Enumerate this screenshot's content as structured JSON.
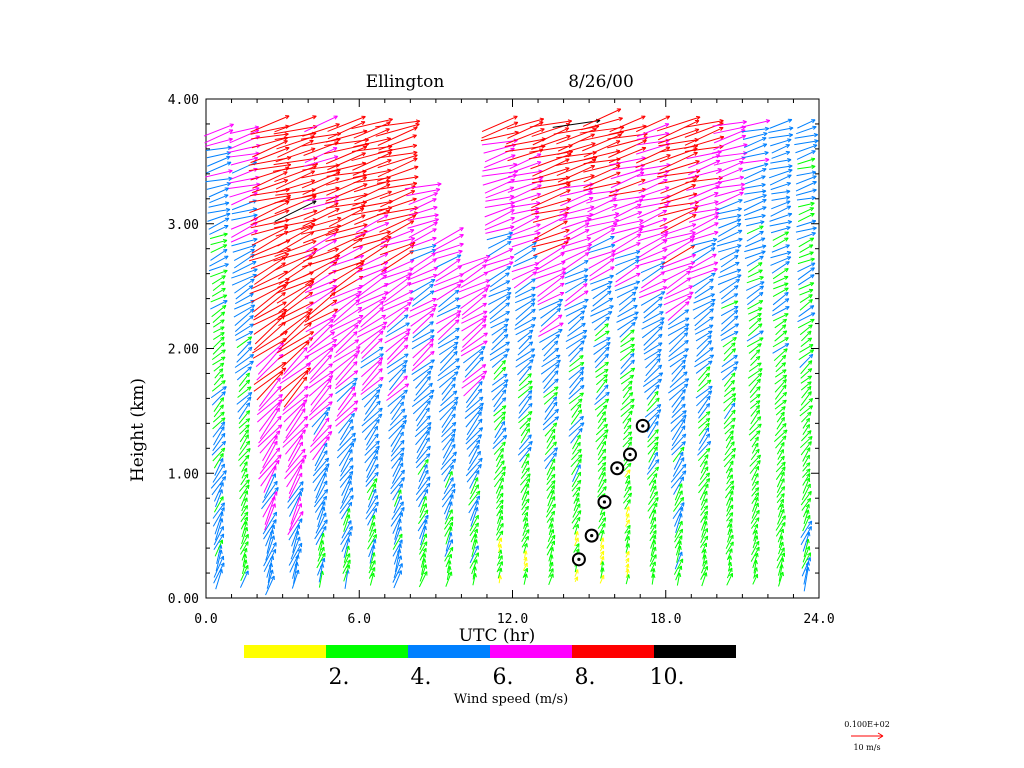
{
  "chart_data": {
    "type": "wind-profile",
    "title_station": "Ellington",
    "title_date": "8/26/00",
    "xlabel": "UTC (hr)",
    "ylabel": "Height (km)",
    "xlim": [
      0,
      24
    ],
    "ylim": [
      0,
      4
    ],
    "xticks": [
      0,
      12,
      24
    ],
    "xtick_labels": [
      "0.0",
      "12.0",
      "24.0"
    ],
    "xtick_labels_extra": [
      "6.0",
      "18.0"
    ],
    "yticks": [
      0,
      1,
      2,
      3,
      4
    ],
    "ytick_labels": [
      "0.00",
      "1.00",
      "2.00",
      "3.00",
      "4.00"
    ],
    "profile_times": [
      0.5,
      1.5,
      2.5,
      3.5,
      4.5,
      5.5,
      6.5,
      7.5,
      8.5,
      9.5,
      10.5,
      11.5,
      12.5,
      13.5,
      14.5,
      15.5,
      16.5,
      17.5,
      18.5,
      19.5,
      20.5,
      21.5,
      22.5,
      23.5
    ],
    "height_step_km": 0.05,
    "profile_tops_km": [
      3.75,
      3.75,
      3.8,
      3.8,
      3.8,
      3.8,
      3.8,
      3.8,
      3.3,
      2.9,
      2.7,
      3.8,
      3.8,
      3.8,
      3.8,
      3.85,
      3.8,
      3.8,
      3.8,
      3.8,
      3.8,
      3.8,
      3.8,
      3.8
    ],
    "profile_bottoms_km": [
      0.15,
      0.15,
      0.1,
      0.15,
      0.15,
      0.15,
      0.15,
      0.15,
      0.15,
      0.15,
      0.15,
      0.15,
      0.15,
      0.15,
      0.15,
      0.15,
      0.15,
      0.15,
      0.15,
      0.15,
      0.15,
      0.15,
      0.15,
      0.15
    ],
    "profile_speeds_m_s": [
      [
        4.5,
        4.5,
        3.0,
        4.5,
        7.0
      ],
      [
        3.5,
        3.0,
        4.5,
        6.0,
        7.0
      ],
      [
        4.5,
        6.5,
        8.5,
        9.0,
        8.5
      ],
      [
        4.5,
        6.5,
        8.5,
        9.5,
        9.0
      ],
      [
        3.0,
        5.5,
        7.5,
        8.5,
        8.0
      ],
      [
        3.5,
        5.0,
        7.0,
        9.0,
        9.5
      ],
      [
        3.0,
        4.5,
        6.5,
        8.5,
        9.0
      ],
      [
        4.5,
        4.5,
        6.0,
        8.5,
        9.5
      ],
      [
        3.0,
        4.5,
        6.0,
        6.5,
        9.5
      ],
      [
        3.0,
        4.5,
        5.5,
        7.0,
        9.0
      ],
      [
        3.0,
        4.5,
        6.5,
        7.5,
        9.5
      ],
      [
        1.5,
        3.5,
        4.5,
        6.5,
        8.5
      ],
      [
        1.5,
        3.5,
        4.5,
        6.5,
        9.5
      ],
      [
        2.5,
        3.5,
        5.0,
        8.5,
        9.5
      ],
      [
        1.5,
        3.5,
        4.5,
        7.0,
        10.5
      ],
      [
        1.5,
        3.0,
        4.0,
        7.0,
        10.0
      ],
      [
        1.5,
        2.5,
        4.0,
        7.0,
        9.5
      ],
      [
        2.5,
        3.5,
        5.0,
        7.0,
        8.0
      ],
      [
        3.0,
        4.5,
        5.0,
        8.5,
        9.5
      ],
      [
        2.5,
        3.5,
        4.5,
        6.5,
        9.5
      ],
      [
        2.5,
        3.0,
        4.0,
        5.5,
        8.5
      ],
      [
        3.0,
        3.0,
        3.5,
        4.5,
        6.5
      ],
      [
        3.5,
        3.0,
        3.5,
        4.5,
        5.0
      ],
      [
        5.0,
        3.0,
        3.5,
        4.0,
        5.0
      ]
    ],
    "boundary_layer_points": [
      [
        14.6,
        0.31
      ],
      [
        15.1,
        0.5
      ],
      [
        15.6,
        0.77
      ],
      [
        16.1,
        1.04
      ],
      [
        16.6,
        1.15
      ],
      [
        17.1,
        1.38
      ]
    ],
    "colorbar": {
      "label": "Wind speed (m/s)",
      "tick_labels": [
        "2.",
        "4.",
        "6.",
        "8.",
        "10."
      ],
      "bins": [
        [
          0,
          2
        ],
        [
          2,
          4
        ],
        [
          4,
          6
        ],
        [
          6,
          8
        ],
        [
          8,
          10
        ],
        [
          10,
          12
        ]
      ],
      "colors": [
        "#ffff00",
        "#00ff00",
        "#0080ff",
        "#ff00ff",
        "#ff0000",
        "#000000"
      ]
    },
    "reference_vector": {
      "value_label": "0.100E+02",
      "unit_label": "10 m/s",
      "speed": 10,
      "color": "#ff0000"
    }
  }
}
